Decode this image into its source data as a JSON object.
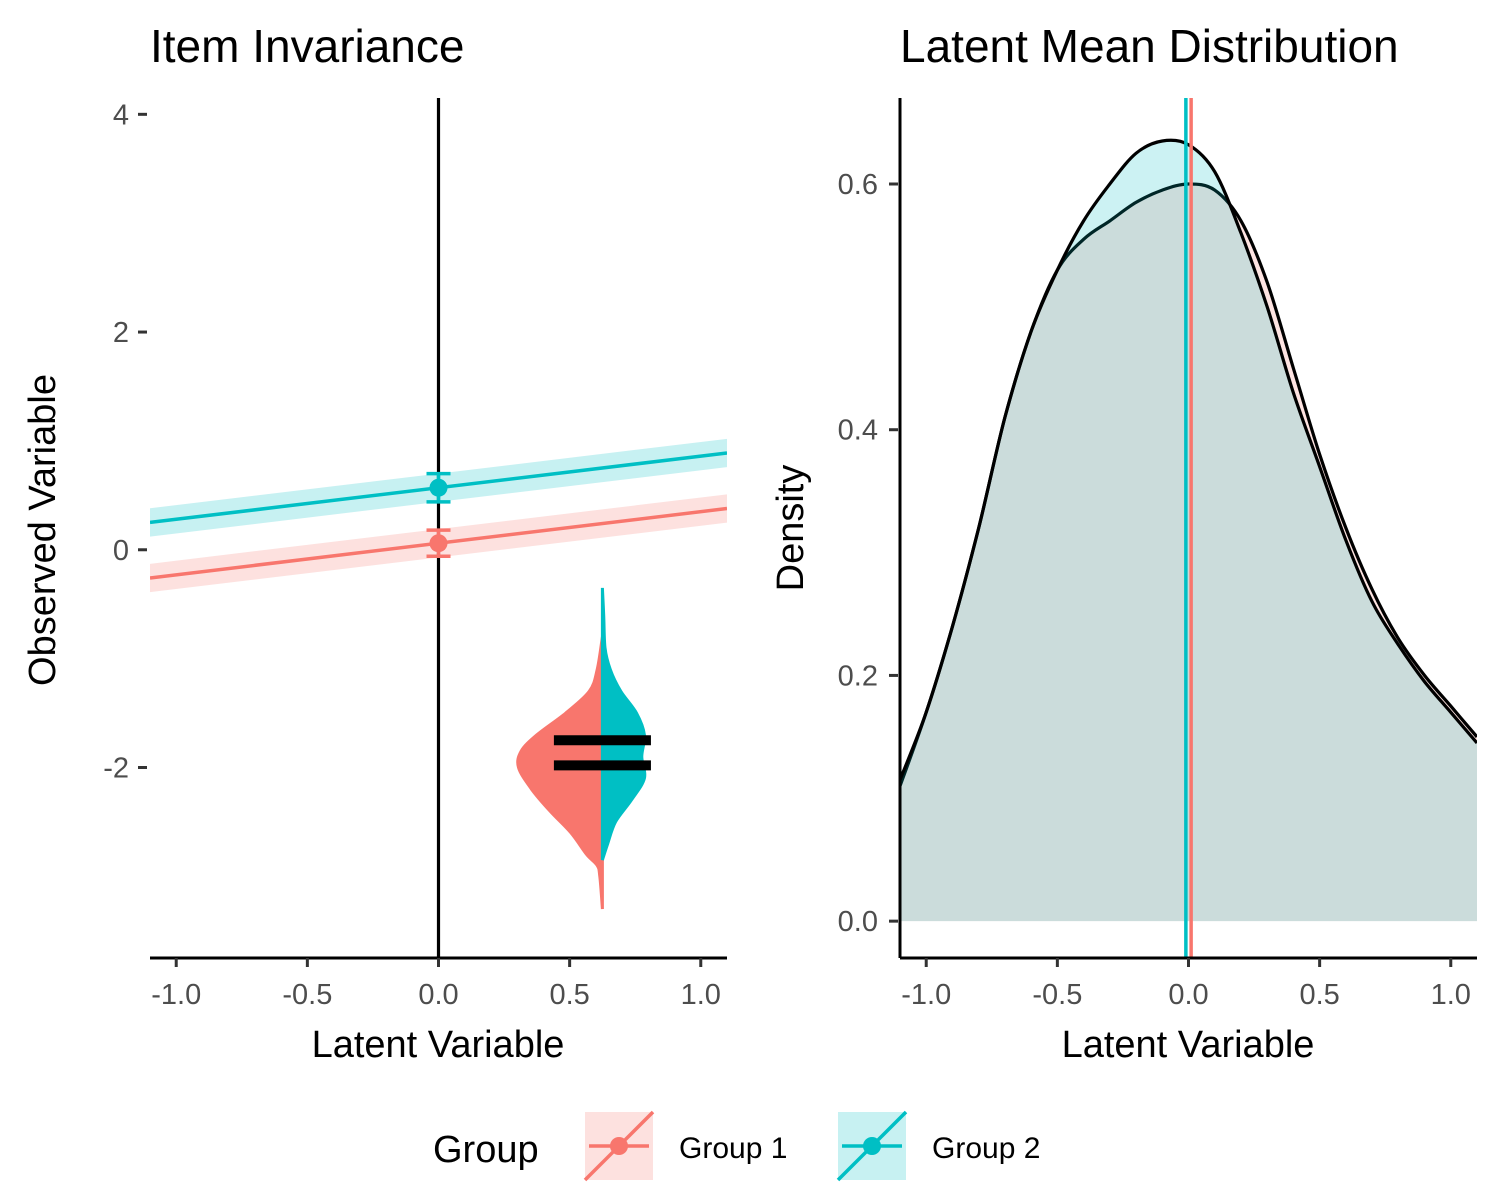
{
  "chart_data": [
    {
      "type": "line",
      "title": "Item Invariance",
      "xlabel": "Latent Variable",
      "ylabel": "Observed Variable",
      "xlim": [
        -1.1,
        1.1
      ],
      "ylim": [
        -3.75,
        4.15
      ],
      "x_ticks": [
        "-1.0",
        "-0.5",
        "0.0",
        "0.5",
        "1.0"
      ],
      "y_ticks": [
        "-2",
        "0",
        "2",
        "4"
      ],
      "grid": false,
      "series": [
        {
          "name": "Group 1",
          "color": "#F8766D",
          "intercept": 0.06,
          "slope": 0.29,
          "ci_halfwidth": 0.13,
          "point": {
            "x": 0.0,
            "y": 0.06,
            "err": 0.12
          }
        },
        {
          "name": "Group 2",
          "color": "#00BFC4",
          "intercept": 0.57,
          "slope": 0.29,
          "ci_halfwidth": 0.13,
          "point": {
            "x": 0.0,
            "y": 0.57,
            "err": 0.13
          }
        }
      ],
      "violin": {
        "center_x": 0.625,
        "means": [
          -1.75,
          -1.98
        ],
        "left_half": {
          "color": "#F8766D",
          "profile": [
            [
              -3.3,
              0.0
            ],
            [
              -3.0,
              0.01
            ],
            [
              -2.9,
              0.02
            ],
            [
              -2.8,
              0.06
            ],
            [
              -2.6,
              0.12
            ],
            [
              -2.4,
              0.2
            ],
            [
              -2.2,
              0.27
            ],
            [
              -2.0,
              0.32
            ],
            [
              -1.85,
              0.31
            ],
            [
              -1.7,
              0.25
            ],
            [
              -1.5,
              0.14
            ],
            [
              -1.3,
              0.05
            ],
            [
              -1.1,
              0.02
            ],
            [
              -0.8,
              0.0
            ]
          ]
        },
        "right_half": {
          "color": "#00BFC4",
          "profile": [
            [
              -2.85,
              0.0
            ],
            [
              -2.7,
              0.02
            ],
            [
              -2.5,
              0.05
            ],
            [
              -2.3,
              0.11
            ],
            [
              -2.1,
              0.16
            ],
            [
              -1.9,
              0.15
            ],
            [
              -1.7,
              0.16
            ],
            [
              -1.5,
              0.13
            ],
            [
              -1.3,
              0.07
            ],
            [
              -1.1,
              0.03
            ],
            [
              -0.9,
              0.01
            ],
            [
              -0.6,
              0.005
            ],
            [
              -0.35,
              0.0
            ]
          ]
        }
      }
    },
    {
      "type": "area",
      "title": "Latent Mean Distribution",
      "xlabel": "Latent Variable",
      "ylabel": "Density",
      "xlim": [
        -1.1,
        1.1
      ],
      "ylim": [
        -0.03,
        0.67
      ],
      "x_ticks": [
        "-1.0",
        "-0.5",
        "0.0",
        "0.5",
        "1.0"
      ],
      "y_ticks": [
        "0.0",
        "0.2",
        "0.4",
        "0.6"
      ],
      "grid": false,
      "series": [
        {
          "name": "Group 1",
          "color": "#F8766D",
          "mean": 0.01,
          "x": [
            -1.1,
            -1.0,
            -0.9,
            -0.8,
            -0.7,
            -0.6,
            -0.5,
            -0.4,
            -0.3,
            -0.2,
            -0.1,
            0.0,
            0.1,
            0.2,
            0.3,
            0.4,
            0.5,
            0.6,
            0.7,
            0.8,
            0.9,
            1.0,
            1.1
          ],
          "y": [
            0.11,
            0.17,
            0.24,
            0.32,
            0.41,
            0.48,
            0.53,
            0.555,
            0.57,
            0.585,
            0.595,
            0.6,
            0.595,
            0.57,
            0.52,
            0.45,
            0.38,
            0.32,
            0.27,
            0.23,
            0.2,
            0.175,
            0.15
          ]
        },
        {
          "name": "Group 2",
          "color": "#00BFC4",
          "mean": -0.01,
          "x": [
            -1.1,
            -1.0,
            -0.9,
            -0.8,
            -0.7,
            -0.6,
            -0.5,
            -0.4,
            -0.3,
            -0.2,
            -0.1,
            0.0,
            0.1,
            0.2,
            0.3,
            0.4,
            0.5,
            0.6,
            0.7,
            0.8,
            0.9,
            1.0,
            1.1
          ],
          "y": [
            0.115,
            0.17,
            0.24,
            0.32,
            0.41,
            0.48,
            0.53,
            0.57,
            0.6,
            0.625,
            0.635,
            0.632,
            0.61,
            0.56,
            0.5,
            0.43,
            0.37,
            0.31,
            0.26,
            0.225,
            0.195,
            0.17,
            0.145
          ]
        }
      ]
    }
  ],
  "legend": {
    "title": "Group",
    "items": [
      {
        "label": "Group 1",
        "color": "#F8766D"
      },
      {
        "label": "Group 2",
        "color": "#00BFC4"
      }
    ]
  }
}
